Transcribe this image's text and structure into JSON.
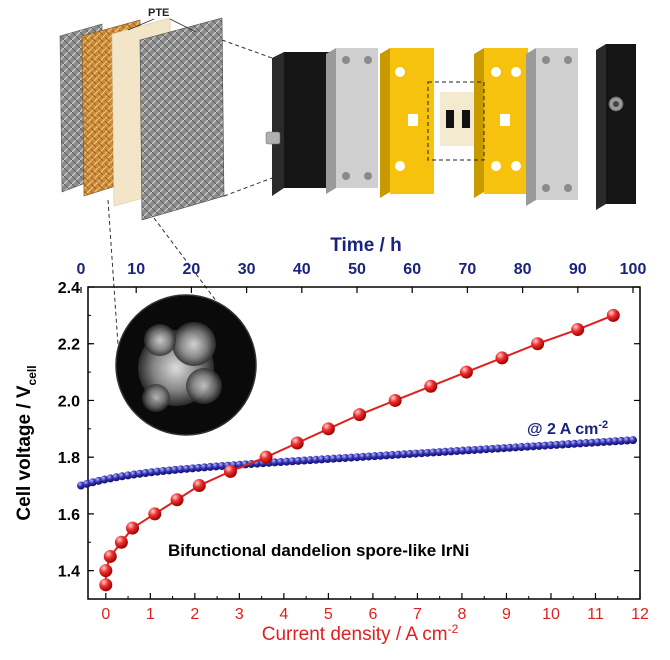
{
  "illustration": {
    "pte_label": "PTE"
  },
  "chart_data": {
    "type": "scatter",
    "top_axis": {
      "label": "Time / h",
      "ticks": [
        0,
        10,
        20,
        30,
        40,
        50,
        60,
        70,
        80,
        90,
        100
      ],
      "range": [
        0,
        100
      ],
      "color": "#1a237e"
    },
    "bottom_axis": {
      "label_main": "Current density / A cm",
      "label_sup": "-2",
      "ticks": [
        0,
        1,
        2,
        3,
        4,
        5,
        6,
        7,
        8,
        9,
        10,
        11,
        12
      ],
      "range": [
        -0.4,
        12
      ],
      "color": "#e02020"
    },
    "y_axis": {
      "label_main": "Cell voltage / V",
      "label_sub": "cell",
      "ticks": [
        "1.4",
        "1.6",
        "1.8",
        "2.0",
        "2.2",
        "2.4"
      ],
      "range": [
        1.3,
        2.4
      ]
    },
    "annotation_main": "@ 2 A cm",
    "annotation_sup": "-2",
    "caption": "Bifunctional dandelion spore-like IrNi",
    "series": [
      {
        "id": "polarization",
        "axis_x": "bottom",
        "color": "#e02020",
        "points": [
          [
            0.0,
            1.35
          ],
          [
            0.0,
            1.4
          ],
          [
            0.1,
            1.45
          ],
          [
            0.35,
            1.5
          ],
          [
            0.6,
            1.55
          ],
          [
            1.1,
            1.6
          ],
          [
            1.6,
            1.65
          ],
          [
            2.1,
            1.7
          ],
          [
            2.8,
            1.75
          ],
          [
            3.6,
            1.8
          ],
          [
            4.3,
            1.85
          ],
          [
            5.0,
            1.9
          ],
          [
            5.7,
            1.95
          ],
          [
            6.5,
            2.0
          ],
          [
            7.3,
            2.05
          ],
          [
            8.1,
            2.1
          ],
          [
            8.9,
            2.15
          ],
          [
            9.7,
            2.2
          ],
          [
            10.6,
            2.25
          ],
          [
            11.4,
            2.3
          ]
        ]
      },
      {
        "id": "stability",
        "axis_x": "top",
        "color": "#2b2ba8",
        "start": [
          0,
          1.7
        ],
        "end": [
          100,
          1.86
        ],
        "count": 95
      }
    ]
  }
}
